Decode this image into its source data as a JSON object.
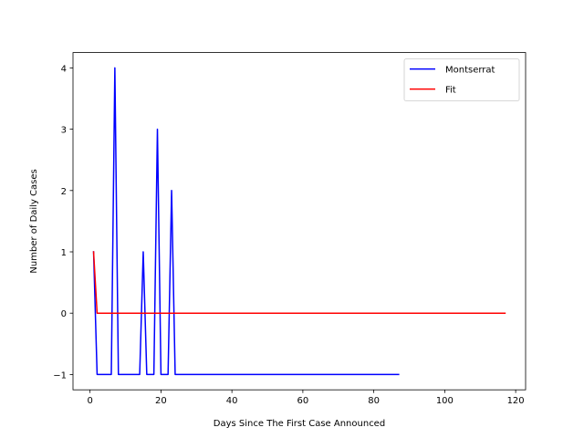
{
  "chart_data": {
    "type": "line",
    "title": "",
    "xlabel": "Days Since The First Case Announced",
    "ylabel": "Number of Daily Cases",
    "xlim": [
      -4.8,
      122.8
    ],
    "ylim": [
      -1.25,
      4.25
    ],
    "xticks": [
      0,
      20,
      40,
      60,
      80,
      100,
      120
    ],
    "yticks": [
      -1,
      0,
      1,
      2,
      3,
      4
    ],
    "grid": false,
    "legend_position": "upper right",
    "series": [
      {
        "name": "Montserrat",
        "color": "#0000ff",
        "points": [
          [
            1,
            1
          ],
          [
            2,
            -1
          ],
          [
            3,
            -1
          ],
          [
            4,
            -1
          ],
          [
            5,
            -1
          ],
          [
            6,
            -1
          ],
          [
            7,
            4
          ],
          [
            8,
            -1
          ],
          [
            9,
            -1
          ],
          [
            10,
            -1
          ],
          [
            11,
            -1
          ],
          [
            12,
            -1
          ],
          [
            13,
            -1
          ],
          [
            14,
            -1
          ],
          [
            15,
            1
          ],
          [
            16,
            -1
          ],
          [
            17,
            -1
          ],
          [
            18,
            -1
          ],
          [
            19,
            3
          ],
          [
            20,
            -1
          ],
          [
            21,
            -1
          ],
          [
            22,
            -1
          ],
          [
            23,
            2
          ],
          [
            24,
            -1
          ],
          [
            25,
            -1
          ],
          [
            30,
            -1
          ],
          [
            40,
            -1
          ],
          [
            50,
            -1
          ],
          [
            60,
            -1
          ],
          [
            70,
            -1
          ],
          [
            80,
            -1
          ],
          [
            87,
            -1
          ]
        ]
      },
      {
        "name": "Fit",
        "color": "#ff0000",
        "points": [
          [
            1,
            1
          ],
          [
            2,
            0
          ],
          [
            10,
            0
          ],
          [
            20,
            0
          ],
          [
            40,
            0
          ],
          [
            60,
            0
          ],
          [
            80,
            0
          ],
          [
            100,
            0
          ],
          [
            117,
            0
          ]
        ]
      }
    ]
  }
}
